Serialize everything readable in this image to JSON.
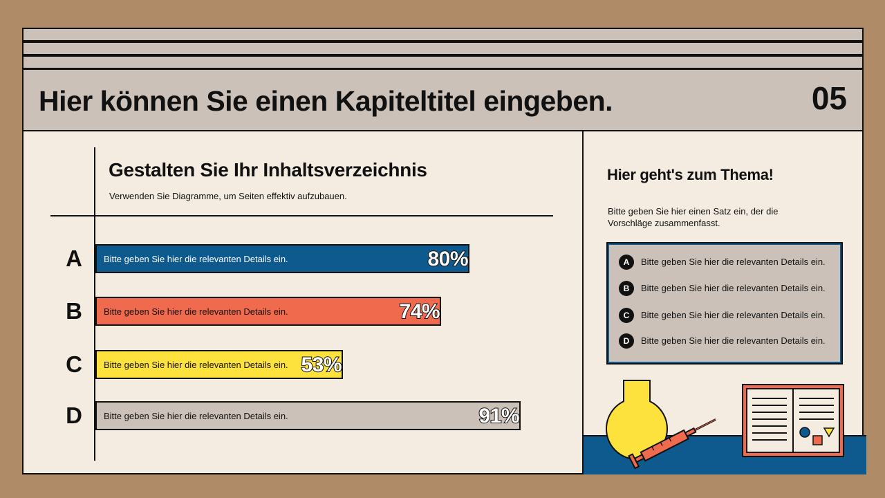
{
  "header": {
    "chapter_title": "Hier können Sie einen Kapiteltitel eingeben.",
    "chapter_number": "05"
  },
  "left": {
    "title": "Gestalten Sie Ihr Inhaltsverzeichnis",
    "subtitle": "Verwenden Sie Diagramme, um Seiten effektiv aufzubauen."
  },
  "chart_data": {
    "type": "bar",
    "orientation": "horizontal",
    "categories": [
      "A",
      "B",
      "C",
      "D"
    ],
    "values": [
      80,
      74,
      53,
      91
    ],
    "value_labels": [
      "80%",
      "74%",
      "53%",
      "91%"
    ],
    "bar_texts": [
      "Bitte geben Sie hier die relevanten Details ein.",
      "Bitte geben Sie hier die relevanten Details ein.",
      "Bitte geben Sie hier die relevanten Details ein.",
      "Bitte geben Sie hier die relevanten Details ein."
    ],
    "colors": [
      "#0e5a8e",
      "#f06a4d",
      "#fde13c",
      "#cbc1b8"
    ],
    "text_colors": [
      "#ffffff",
      "#111111",
      "#111111",
      "#111111"
    ],
    "xlim": [
      0,
      100
    ],
    "grid": false
  },
  "right": {
    "title": "Hier geht's zum Thema!",
    "text": "Bitte geben Sie hier einen Satz ein, der die Vorschläge zusammenfasst.",
    "list": [
      {
        "letter": "A",
        "text": "Bitte geben Sie hier die relevanten Details ein."
      },
      {
        "letter": "B",
        "text": "Bitte geben Sie hier die relevanten Details ein."
      },
      {
        "letter": "C",
        "text": "Bitte geben Sie hier die relevanten Details ein."
      },
      {
        "letter": "D",
        "text": "Bitte geben Sie hier die relevanten Details ein."
      }
    ]
  }
}
